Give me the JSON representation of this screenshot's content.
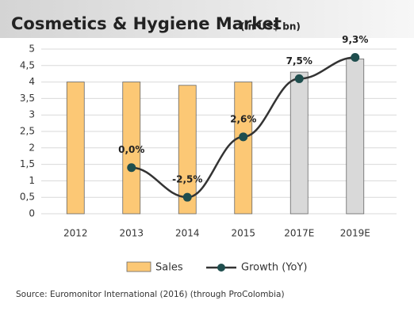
{
  "chart_data": {
    "type": "bar-line",
    "title": "Cosmetics & Hygiene Market",
    "subtitle": "(in US$ bn)",
    "source": "Source: Euromonitor International (2016) (through ProColombia)",
    "categories": [
      "2012",
      "2013",
      "2014",
      "2015",
      "2017E",
      "2019E"
    ],
    "series": [
      {
        "name": "Sales",
        "type": "bar",
        "color": "#fcc875",
        "colors": [
          "#fcc875",
          "#fcc875",
          "#fcc875",
          "#fcc875",
          "#d9d9d9",
          "#d9d9d9"
        ],
        "values": [
          4.0,
          4.0,
          3.9,
          4.0,
          4.3,
          4.7
        ]
      },
      {
        "name": "Growth (YoY)",
        "type": "line",
        "axis": "y2",
        "color": "#1f4e4e",
        "values": [
          null,
          0.0,
          -2.5,
          2.6,
          7.5,
          9.3
        ],
        "value_labels": [
          null,
          "0,0%",
          "-2,5%",
          "2,6%",
          "7,5%",
          "9,3%"
        ]
      }
    ],
    "ylim": [
      0,
      5
    ],
    "yticks": [
      0,
      {
        "value": 0.5,
        "label": "0,5"
      },
      1,
      {
        "value": 1.5,
        "label": "1,5"
      },
      2,
      {
        "value": 2.5,
        "label": "2,5"
      },
      3,
      {
        "value": 3.5,
        "label": "3,5"
      },
      4,
      {
        "value": 4.5,
        "label": "4,5"
      },
      5
    ],
    "y2lim": [
      -3.89,
      10
    ],
    "grid": true
  }
}
